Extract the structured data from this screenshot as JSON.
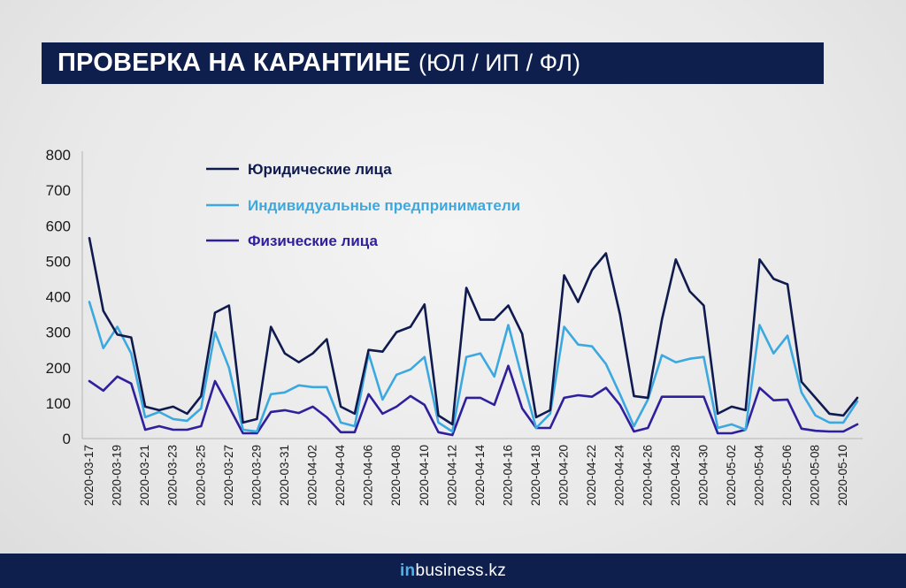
{
  "header": {
    "title_main": "ПРОВЕРКА НА КАРАНТИНЕ",
    "title_sub": "(ЮЛ / ИП / ФЛ)"
  },
  "footer": {
    "brand_in": "in",
    "brand_rest": "business.kz"
  },
  "chart_data": {
    "type": "line",
    "title": "",
    "xlabel": "",
    "ylabel": "",
    "ylim": [
      0,
      800
    ],
    "yticks": [
      0,
      100,
      200,
      300,
      400,
      500,
      600,
      700,
      800
    ],
    "grid": false,
    "legend_position": "top-left",
    "x": [
      "2020-03-17",
      "2020-03-18",
      "2020-03-19",
      "2020-03-20",
      "2020-03-21",
      "2020-03-22",
      "2020-03-23",
      "2020-03-24",
      "2020-03-25",
      "2020-03-26",
      "2020-03-27",
      "2020-03-28",
      "2020-03-29",
      "2020-03-30",
      "2020-03-31",
      "2020-04-01",
      "2020-04-02",
      "2020-04-03",
      "2020-04-04",
      "2020-04-05",
      "2020-04-06",
      "2020-04-07",
      "2020-04-08",
      "2020-04-09",
      "2020-04-10",
      "2020-04-11",
      "2020-04-12",
      "2020-04-13",
      "2020-04-14",
      "2020-04-15",
      "2020-04-16",
      "2020-04-17",
      "2020-04-18",
      "2020-04-19",
      "2020-04-20",
      "2020-04-21",
      "2020-04-22",
      "2020-04-23",
      "2020-04-24",
      "2020-04-25",
      "2020-04-26",
      "2020-04-27",
      "2020-04-28",
      "2020-04-29",
      "2020-04-30",
      "2020-05-01",
      "2020-05-02",
      "2020-05-03",
      "2020-05-04",
      "2020-05-05",
      "2020-05-06",
      "2020-05-07",
      "2020-05-08",
      "2020-05-09",
      "2020-05-10",
      "2020-05-11"
    ],
    "x_tick_labels": [
      "2020-03-17",
      "2020-03-19",
      "2020-03-21",
      "2020-03-23",
      "2020-03-25",
      "2020-03-27",
      "2020-03-29",
      "2020-03-31",
      "2020-04-02",
      "2020-04-04",
      "2020-04-06",
      "2020-04-08",
      "2020-04-10",
      "2020-04-12",
      "2020-04-14",
      "2020-04-16",
      "2020-04-18",
      "2020-04-20",
      "2020-04-22",
      "2020-04-24",
      "2020-04-26",
      "2020-04-28",
      "2020-04-30",
      "2020-05-02",
      "2020-05-04",
      "2020-05-06",
      "2020-05-08",
      "2020-05-10"
    ],
    "series": [
      {
        "name": "Юридические лица",
        "color": "#0f1a4e",
        "values": [
          565,
          360,
          293,
          285,
          90,
          80,
          90,
          70,
          120,
          355,
          375,
          45,
          55,
          315,
          240,
          215,
          240,
          280,
          90,
          70,
          250,
          245,
          300,
          315,
          378,
          65,
          40,
          425,
          335,
          335,
          375,
          295,
          60,
          80,
          460,
          385,
          475,
          522,
          350,
          120,
          115,
          335,
          505,
          415,
          375,
          70,
          90,
          80,
          505,
          450,
          435,
          160,
          115,
          70,
          65,
          115
        ]
      },
      {
        "name": "Индивидуальные предприниматели",
        "color": "#3ba9e0",
        "values": [
          385,
          255,
          315,
          240,
          60,
          75,
          55,
          50,
          85,
          300,
          200,
          25,
          20,
          125,
          130,
          150,
          145,
          145,
          45,
          35,
          240,
          110,
          180,
          195,
          230,
          45,
          20,
          230,
          240,
          175,
          320,
          170,
          30,
          70,
          315,
          265,
          260,
          210,
          125,
          35,
          110,
          235,
          215,
          225,
          230,
          30,
          40,
          25,
          320,
          240,
          290,
          130,
          65,
          45,
          45,
          105
        ]
      },
      {
        "name": "Физические лица",
        "color": "#2e1f9c",
        "values": [
          162,
          135,
          175,
          155,
          25,
          35,
          25,
          25,
          35,
          162,
          90,
          15,
          15,
          75,
          80,
          72,
          90,
          60,
          18,
          18,
          125,
          70,
          90,
          120,
          95,
          18,
          10,
          115,
          115,
          95,
          205,
          85,
          30,
          30,
          115,
          122,
          118,
          143,
          95,
          20,
          30,
          118,
          118,
          118,
          118,
          15,
          15,
          25,
          143,
          108,
          110,
          28,
          22,
          20,
          20,
          40
        ]
      }
    ]
  }
}
